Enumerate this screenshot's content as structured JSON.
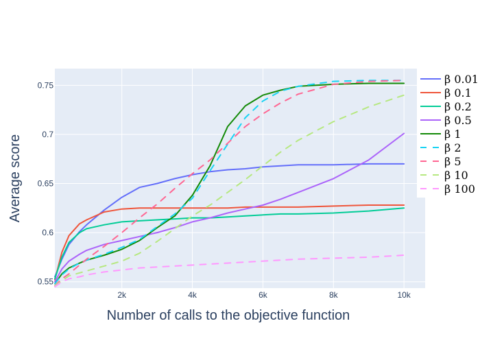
{
  "chart_data": {
    "type": "line",
    "xlabel": "Number of calls to the objective function",
    "ylabel": "Average score",
    "xlim": [
      100,
      10600
    ],
    "ylim": [
      0.5435,
      0.767
    ],
    "x_ticks": [
      {
        "value": 2000,
        "label": "2k"
      },
      {
        "value": 4000,
        "label": "4k"
      },
      {
        "value": 6000,
        "label": "6k"
      },
      {
        "value": 8000,
        "label": "8k"
      },
      {
        "value": 10000,
        "label": "10k"
      }
    ],
    "y_ticks": [
      {
        "value": 0.55,
        "label": "0.55"
      },
      {
        "value": 0.6,
        "label": "0.6"
      },
      {
        "value": 0.65,
        "label": "0.65"
      },
      {
        "value": 0.7,
        "label": "0.7"
      },
      {
        "value": 0.75,
        "label": "0.75"
      }
    ],
    "grid": true,
    "legend_position": "right",
    "x": [
      100,
      300,
      500,
      800,
      1000,
      1500,
      2000,
      2500,
      3000,
      3500,
      4000,
      4500,
      5000,
      5500,
      6000,
      6500,
      7000,
      8000,
      9000,
      10000
    ],
    "series": [
      {
        "name": "β 0.01",
        "color": "#636efa",
        "dash": "solid",
        "values": [
          0.555,
          0.573,
          0.588,
          0.601,
          0.608,
          0.623,
          0.636,
          0.646,
          0.65,
          0.655,
          0.659,
          0.662,
          0.664,
          0.665,
          0.667,
          0.668,
          0.669,
          0.669,
          0.67,
          0.67
        ]
      },
      {
        "name": "β 0.1",
        "color": "#EF553B",
        "dash": "solid",
        "values": [
          0.552,
          0.58,
          0.597,
          0.609,
          0.613,
          0.621,
          0.624,
          0.625,
          0.625,
          0.625,
          0.625,
          0.625,
          0.625,
          0.626,
          0.626,
          0.626,
          0.626,
          0.627,
          0.628,
          0.628
        ]
      },
      {
        "name": "β 0.2",
        "color": "#00cc96",
        "dash": "solid",
        "values": [
          0.553,
          0.575,
          0.59,
          0.6,
          0.604,
          0.608,
          0.611,
          0.612,
          0.613,
          0.614,
          0.615,
          0.615,
          0.616,
          0.617,
          0.618,
          0.619,
          0.619,
          0.62,
          0.622,
          0.625
        ]
      },
      {
        "name": "β 0.5",
        "color": "#ab63fa",
        "dash": "solid",
        "values": [
          0.55,
          0.563,
          0.571,
          0.578,
          0.582,
          0.588,
          0.592,
          0.596,
          0.6,
          0.605,
          0.611,
          0.615,
          0.62,
          0.624,
          0.628,
          0.634,
          0.641,
          0.655,
          0.674,
          0.701
        ]
      },
      {
        "name": "β 1",
        "color": "#138a07",
        "dash": "solid",
        "values": [
          0.548,
          0.558,
          0.564,
          0.569,
          0.572,
          0.577,
          0.583,
          0.592,
          0.605,
          0.617,
          0.638,
          0.668,
          0.708,
          0.729,
          0.74,
          0.745,
          0.749,
          0.751,
          0.752,
          0.752
        ]
      },
      {
        "name": "β 2",
        "color": "#19d3f3",
        "dash": "dash",
        "values": [
          0.548,
          0.557,
          0.563,
          0.569,
          0.572,
          0.578,
          0.585,
          0.593,
          0.606,
          0.619,
          0.635,
          0.663,
          0.69,
          0.717,
          0.734,
          0.744,
          0.749,
          0.754,
          0.755,
          0.755
        ]
      },
      {
        "name": "β 5",
        "color": "#FF6692",
        "dash": "dash",
        "values": [
          0.546,
          0.553,
          0.558,
          0.567,
          0.573,
          0.586,
          0.6,
          0.615,
          0.629,
          0.645,
          0.66,
          0.674,
          0.691,
          0.708,
          0.721,
          0.732,
          0.741,
          0.751,
          0.754,
          0.755
        ]
      },
      {
        "name": "β 10",
        "color": "#B6E880",
        "dash": "dash",
        "values": [
          0.546,
          0.551,
          0.556,
          0.559,
          0.561,
          0.566,
          0.571,
          0.579,
          0.591,
          0.604,
          0.617,
          0.628,
          0.641,
          0.654,
          0.668,
          0.682,
          0.694,
          0.713,
          0.728,
          0.74
        ]
      },
      {
        "name": "β 100",
        "color": "#FF97FF",
        "dash": "dash",
        "values": [
          0.545,
          0.55,
          0.553,
          0.555,
          0.557,
          0.56,
          0.562,
          0.564,
          0.565,
          0.566,
          0.567,
          0.568,
          0.569,
          0.57,
          0.571,
          0.572,
          0.573,
          0.574,
          0.575,
          0.577
        ]
      }
    ]
  }
}
